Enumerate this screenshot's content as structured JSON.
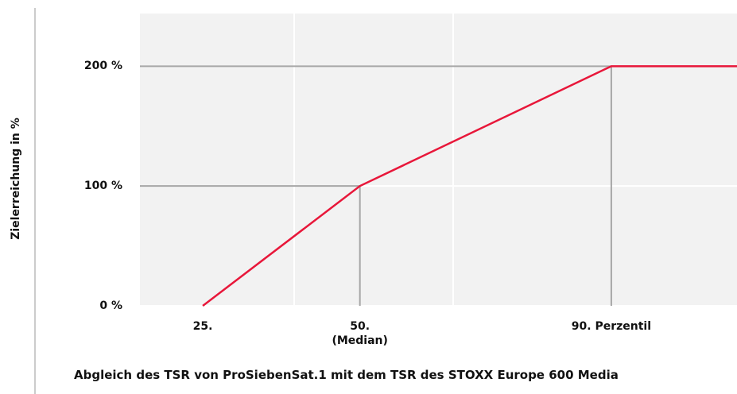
{
  "chart_data": {
    "type": "line",
    "ylabel": "Zielerreichung in %",
    "xlabel": "Abgleich des TSR von ProSiebenSat.1 mit dem TSR des STOXX Europe 600 Media",
    "x": [
      25,
      50,
      90,
      110
    ],
    "series": [
      {
        "name": "Zielerreichung",
        "color": "#e8173a",
        "values": [
          0,
          100,
          200,
          200
        ]
      }
    ],
    "xlim": [
      15,
      110
    ],
    "ylim": [
      0,
      244
    ],
    "xticks": [
      {
        "value": 25,
        "label": "25."
      },
      {
        "value": 50,
        "label": "50.\n(Median)"
      },
      {
        "value": 90,
        "label": "90. Perzentil"
      }
    ],
    "yticks": [
      {
        "value": 0,
        "label": "0 %"
      },
      {
        "value": 100,
        "label": "100 %"
      },
      {
        "value": 200,
        "label": "200 %"
      }
    ],
    "grid": true
  }
}
